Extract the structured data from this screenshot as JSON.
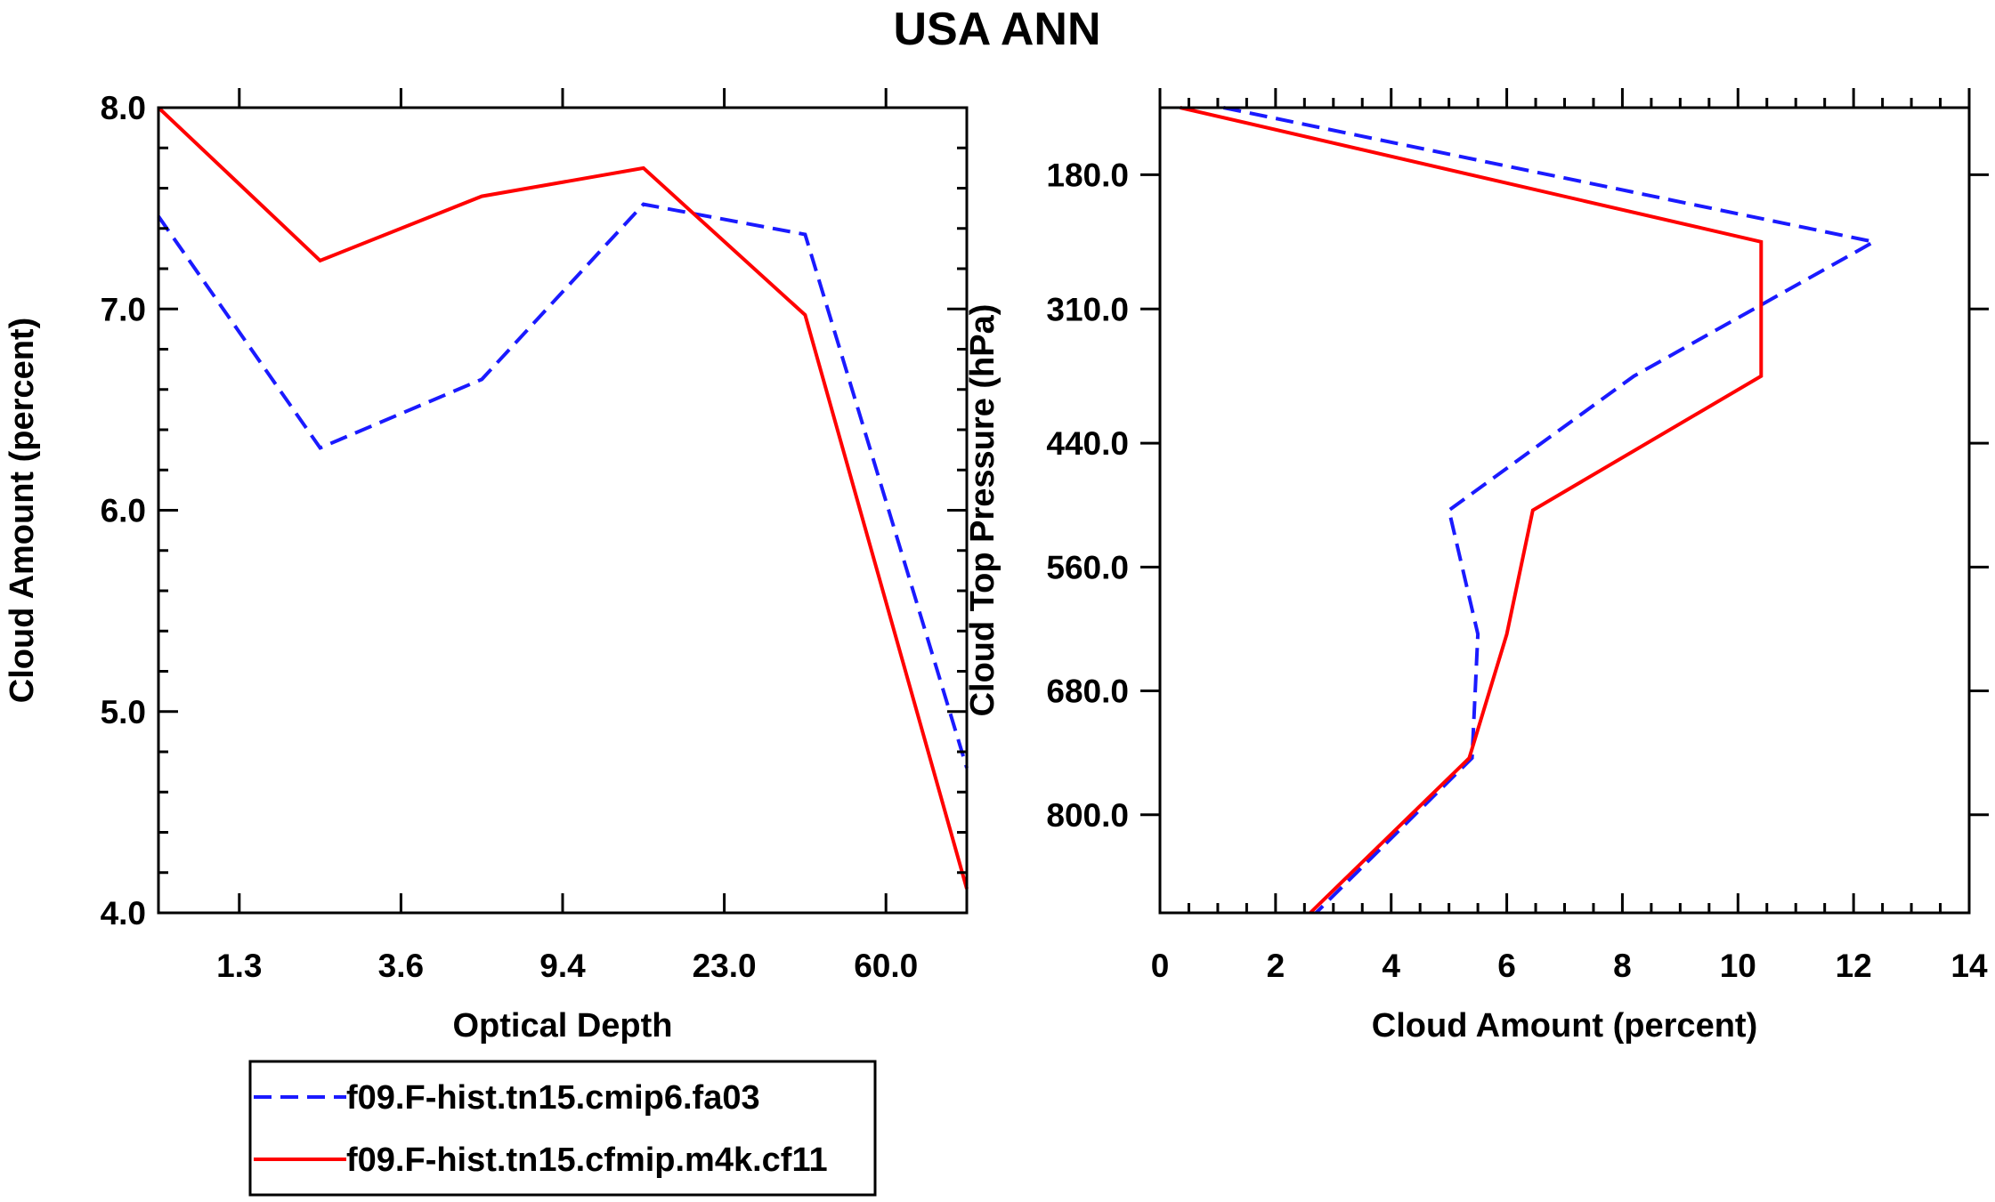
{
  "title": "USA ANN",
  "chart_data": [
    {
      "type": "line",
      "xlabel": "Optical Depth",
      "ylabel": "Cloud Amount (percent)",
      "ylim": [
        4.0,
        8.0
      ],
      "yticks": [
        4.0,
        5.0,
        6.0,
        7.0,
        8.0
      ],
      "ytick_labels": [
        "4.0",
        "5.0",
        "6.0",
        "7.0",
        "8.0"
      ],
      "xlim": [
        0.5,
        5.5
      ],
      "xticks": [
        1,
        2,
        3,
        4,
        5
      ],
      "xtick_labels": [
        "1.3",
        "3.6",
        "9.4",
        "23.0",
        "60.0"
      ],
      "x": [
        0.5,
        1.5,
        2.5,
        3.5,
        4.5,
        5.5
      ],
      "series": [
        {
          "name": "f09.F-hist.tn15.cmip6.fa03",
          "color": "#1a1aff",
          "dash": "dashed",
          "values": [
            7.46,
            6.31,
            6.65,
            7.52,
            7.37,
            4.72
          ]
        },
        {
          "name": "f09.F-hist.tn15.cfmip.m4k.cf11",
          "color": "#ff0000",
          "dash": "solid",
          "values": [
            8.0,
            7.24,
            7.56,
            7.7,
            6.97,
            4.12
          ]
        }
      ]
    },
    {
      "type": "line",
      "orientation": "profile",
      "xlabel": "Cloud Amount (percent)",
      "ylabel": "Cloud Top Pressure (hPa)",
      "xlim": [
        0,
        14
      ],
      "xticks": [
        0,
        2,
        4,
        6,
        8,
        10,
        12,
        14
      ],
      "xtick_labels": [
        "0",
        "2",
        "4",
        "6",
        "8",
        "10",
        "12",
        "14"
      ],
      "ylim": [
        115,
        895
      ],
      "yticks": [
        180,
        310,
        440,
        560,
        680,
        800
      ],
      "ytick_labels": [
        "180.0",
        "310.0",
        "440.0",
        "560.0",
        "680.0",
        "800.0"
      ],
      "y": [
        115,
        245,
        375,
        505,
        625,
        745,
        895
      ],
      "series": [
        {
          "name": "f09.F-hist.tn15.cmip6.fa03",
          "color": "#1a1aff",
          "dash": "dashed",
          "values": [
            1.1,
            12.35,
            8.2,
            5.0,
            5.5,
            5.4,
            2.7
          ]
        },
        {
          "name": "f09.F-hist.tn15.cfmip.m4k.cf11",
          "color": "#ff0000",
          "dash": "solid",
          "values": [
            0.35,
            10.4,
            10.4,
            6.45,
            6.0,
            5.35,
            2.6
          ]
        }
      ]
    }
  ],
  "legend": {
    "entries": [
      {
        "label": "f09.F-hist.tn15.cmip6.fa03",
        "color": "#1a1aff",
        "dash": "dashed"
      },
      {
        "label": "f09.F-hist.tn15.cfmip.m4k.cf11",
        "color": "#ff0000",
        "dash": "solid"
      }
    ]
  }
}
